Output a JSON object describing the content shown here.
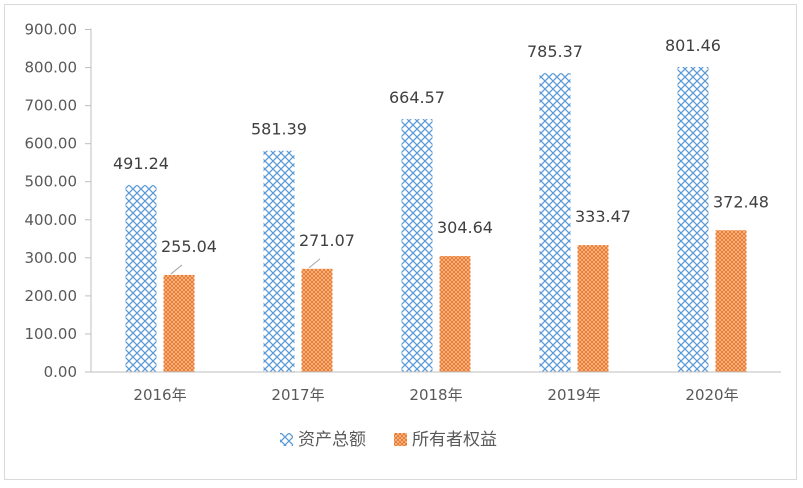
{
  "chart_data": {
    "type": "bar",
    "categories": [
      "2016年",
      "2017年",
      "2018年",
      "2019年",
      "2020年"
    ],
    "series": [
      {
        "name": "资产总额",
        "values": [
          491.24,
          581.39,
          664.57,
          785.37,
          801.46
        ],
        "labels": [
          "491.24",
          "581.39",
          "664.57",
          "785.37",
          "801.46"
        ],
        "color": "#5b9bd5",
        "pattern": "diagonal-cross"
      },
      {
        "name": "所有者权益",
        "values": [
          255.04,
          271.07,
          304.64,
          333.47,
          372.48
        ],
        "labels": [
          "255.04",
          "271.07",
          "304.64",
          "333.47",
          "372.48"
        ],
        "color": "#ed7d31",
        "pattern": "dotted"
      }
    ],
    "y_ticks": [
      "0.00",
      "100.00",
      "200.00",
      "300.00",
      "400.00",
      "500.00",
      "600.00",
      "700.00",
      "800.00",
      "900.00"
    ],
    "ylim": [
      0,
      900
    ],
    "grid": false,
    "legend": "bottom-center"
  }
}
